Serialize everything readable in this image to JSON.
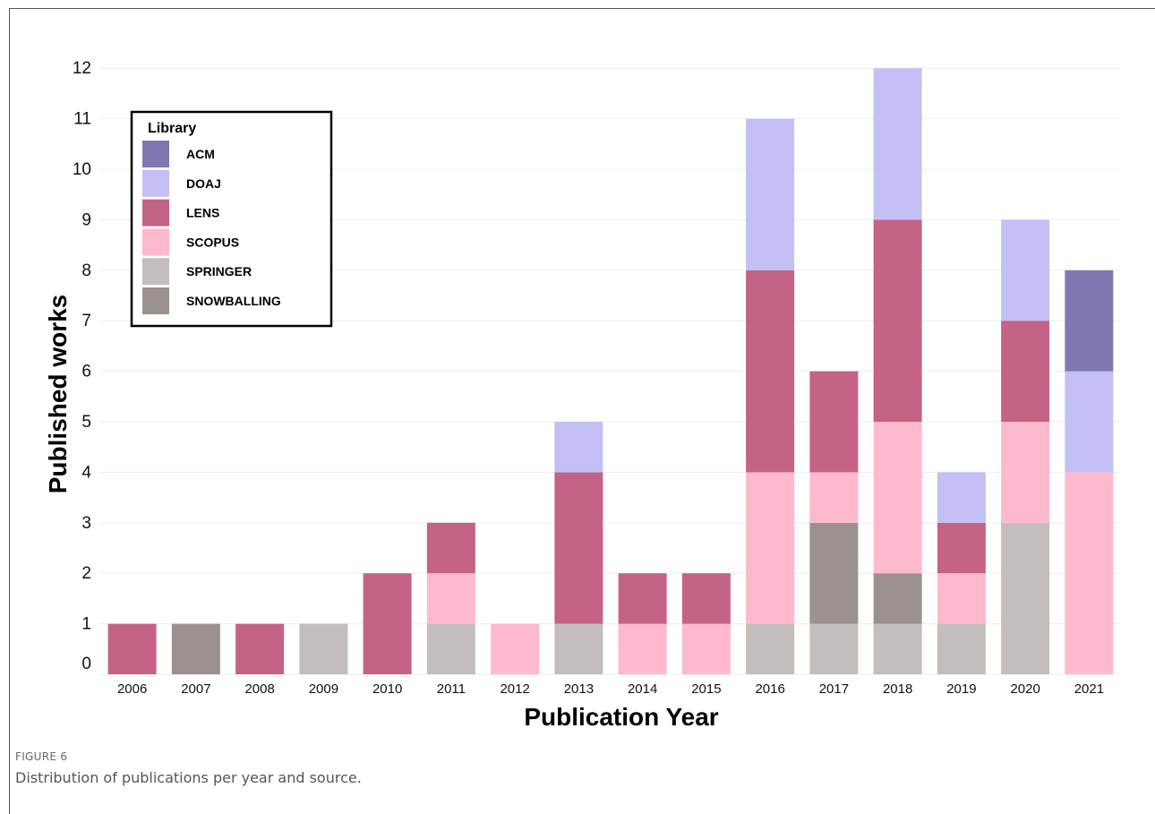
{
  "figure": {
    "label": "FIGURE 6",
    "caption": "Distribution of publications per year and source."
  },
  "chart_data": {
    "type": "bar",
    "stacked": true,
    "xlabel": "Publication Year",
    "ylabel": "Published works",
    "ylim": [
      0,
      12
    ],
    "yticks": [
      0,
      1,
      2,
      3,
      4,
      5,
      6,
      7,
      8,
      9,
      10,
      11,
      12
    ],
    "grid": true,
    "legend": {
      "title": "Library",
      "placement": "top-left"
    },
    "categories": [
      "2006",
      "2007",
      "2008",
      "2009",
      "2010",
      "2011",
      "2012",
      "2013",
      "2014",
      "2015",
      "2016",
      "2017",
      "2018",
      "2019",
      "2020",
      "2021"
    ],
    "series": [
      {
        "name": "SPRINGER",
        "color": "#c3bebb",
        "values": [
          0,
          0,
          0,
          1,
          0,
          1,
          0,
          1,
          0,
          0,
          1,
          1,
          1,
          1,
          3,
          0
        ]
      },
      {
        "name": "SNOWBALLING",
        "color": "#9b918e",
        "values": [
          0,
          1,
          0,
          0,
          0,
          0,
          0,
          0,
          0,
          0,
          0,
          2,
          1,
          0,
          0,
          0
        ]
      },
      {
        "name": "SCOPUS",
        "color": "#ffb9cd",
        "values": [
          0,
          0,
          0,
          0,
          0,
          1,
          1,
          0,
          1,
          1,
          3,
          1,
          3,
          1,
          2,
          4
        ]
      },
      {
        "name": "LENS",
        "color": "#c46386",
        "values": [
          1,
          0,
          1,
          0,
          2,
          1,
          0,
          3,
          1,
          1,
          4,
          2,
          4,
          1,
          2,
          0
        ]
      },
      {
        "name": "DOAJ",
        "color": "#c4bff4",
        "values": [
          0,
          0,
          0,
          0,
          0,
          0,
          0,
          1,
          0,
          0,
          3,
          0,
          3,
          1,
          2,
          2
        ]
      },
      {
        "name": "ACM",
        "color": "#8176b0",
        "values": [
          0,
          0,
          0,
          0,
          0,
          0,
          0,
          0,
          0,
          0,
          0,
          0,
          0,
          0,
          0,
          2
        ]
      }
    ],
    "legend_order": [
      "ACM",
      "DOAJ",
      "LENS",
      "SCOPUS",
      "SPRINGER",
      "SNOWBALLING"
    ]
  }
}
